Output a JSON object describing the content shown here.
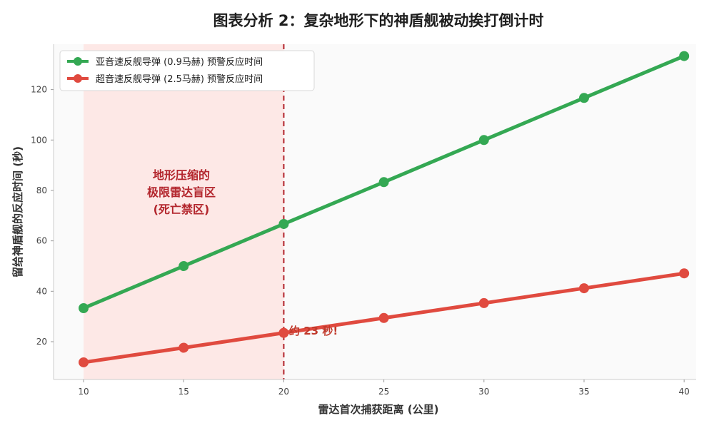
{
  "chart_data": {
    "type": "line",
    "title": "图表分析 2：复杂地形下的神盾舰被动挨打倒计时",
    "xlabel": "雷达首次捕获距离 (公里)",
    "ylabel": "留给神盾舰的反应时间 (秒)",
    "xlim": [
      8.5,
      40.6
    ],
    "ylim": [
      5,
      138
    ],
    "x_ticks": [
      10,
      15,
      20,
      25,
      30,
      35,
      40
    ],
    "y_ticks": [
      20,
      40,
      60,
      80,
      100,
      120
    ],
    "x": [
      10,
      15,
      20,
      25,
      30,
      35,
      40
    ],
    "series": [
      {
        "name": "亚音速反舰导弹 (0.9马赫) 预警反应时间",
        "color": "#34a853",
        "values": [
          33.3,
          50.0,
          66.7,
          83.3,
          100.0,
          116.7,
          133.3
        ]
      },
      {
        "name": "超音速反舰导弹 (2.5马赫) 预警反应时间",
        "color": "#e04a3f",
        "values": [
          11.8,
          17.6,
          23.5,
          29.4,
          35.3,
          41.2,
          47.1
        ]
      }
    ],
    "legend_position": "top-left",
    "grid": false,
    "shaded_region": {
      "x_range": [
        10,
        20
      ],
      "color": "#fde8e6",
      "label_lines": [
        "地形压缩的",
        "极限雷达盲区",
        "(死亡禁区)"
      ]
    },
    "vertical_line": {
      "x": 20,
      "color": "#b3262d",
      "style": "dashed"
    },
    "annotation": {
      "text": "约 23 秒!",
      "x": 20,
      "y": 23.5
    }
  }
}
